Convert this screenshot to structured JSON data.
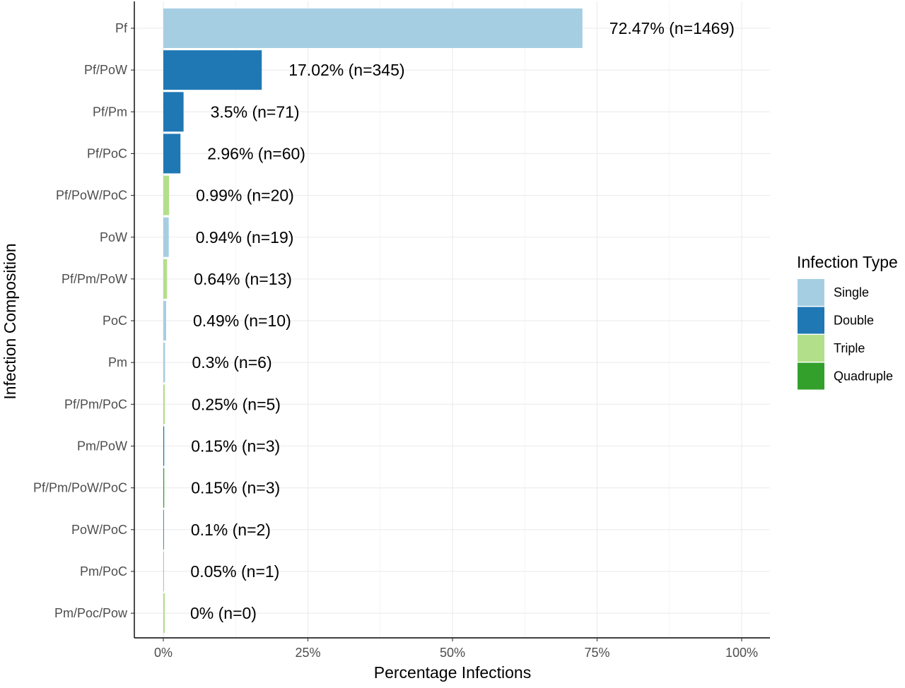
{
  "chart_data": {
    "type": "bar",
    "orientation": "horizontal",
    "xlabel": "Percentage Infections",
    "ylabel": "Infection Composition",
    "xlim": [
      0,
      100
    ],
    "x_ticks": [
      0,
      25,
      50,
      75,
      100
    ],
    "x_tick_labels": [
      "0%",
      "25%",
      "50%",
      "75%",
      "100%"
    ],
    "grid": true,
    "legend": {
      "title": "Infection Type",
      "placement": "right",
      "items": [
        {
          "name": "Single",
          "color": "#a6cee3"
        },
        {
          "name": "Double",
          "color": "#1f78b4"
        },
        {
          "name": "Triple",
          "color": "#b2df8a"
        },
        {
          "name": "Quadruple",
          "color": "#33a02c"
        }
      ]
    },
    "bars": [
      {
        "category": "Pf",
        "value": 72.47,
        "type": "Single",
        "label": "72.47% (n=1469)"
      },
      {
        "category": "Pf/PoW",
        "value": 17.02,
        "type": "Double",
        "label": "17.02% (n=345)"
      },
      {
        "category": "Pf/Pm",
        "value": 3.5,
        "type": "Double",
        "label": "3.5% (n=71)"
      },
      {
        "category": "Pf/PoC",
        "value": 2.96,
        "type": "Double",
        "label": "2.96% (n=60)"
      },
      {
        "category": "Pf/PoW/PoC",
        "value": 0.99,
        "type": "Triple",
        "label": "0.99% (n=20)"
      },
      {
        "category": "PoW",
        "value": 0.94,
        "type": "Single",
        "label": "0.94% (n=19)"
      },
      {
        "category": "Pf/Pm/PoW",
        "value": 0.64,
        "type": "Triple",
        "label": "0.64% (n=13)"
      },
      {
        "category": "PoC",
        "value": 0.49,
        "type": "Single",
        "label": "0.49% (n=10)"
      },
      {
        "category": "Pm",
        "value": 0.3,
        "type": "Single",
        "label": "0.3% (n=6)"
      },
      {
        "category": "Pf/Pm/PoC",
        "value": 0.25,
        "type": "Triple",
        "label": "0.25% (n=5)"
      },
      {
        "category": "Pm/PoW",
        "value": 0.15,
        "type": "Double",
        "label": "0.15% (n=3)"
      },
      {
        "category": "Pf/Pm/PoW/PoC",
        "value": 0.15,
        "type": "Quadruple",
        "label": "0.15% (n=3)"
      },
      {
        "category": "PoW/PoC",
        "value": 0.1,
        "type": "Double",
        "label": "0.1% (n=2)"
      },
      {
        "category": "Pm/PoC",
        "value": 0.05,
        "type": "Double",
        "label": "0.05% (n=1)"
      },
      {
        "category": "Pm/Poc/Pow",
        "value": 0,
        "type": "Triple",
        "label": "0% (n=0)"
      }
    ]
  }
}
